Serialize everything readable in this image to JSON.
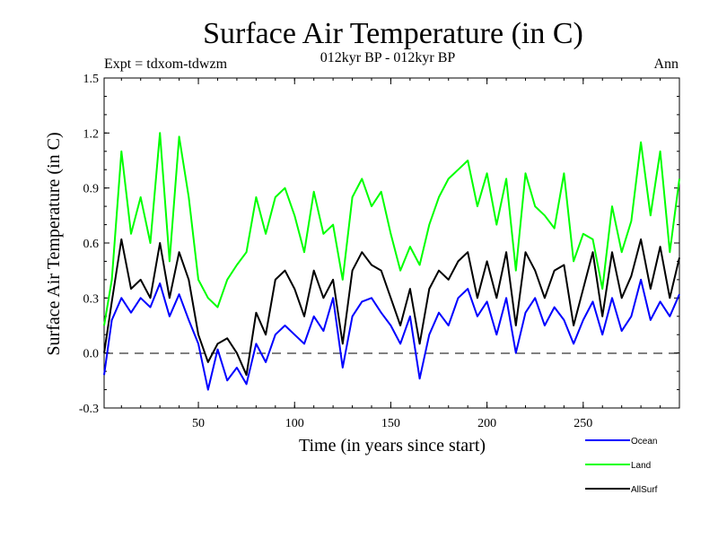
{
  "chart_data": {
    "type": "line",
    "title": "Surface Air Temperature (in C)",
    "subtitle": "012kyr BP - 012kyr BP",
    "experiment_label": "Expt = tdxom-tdwzm",
    "period_label": "Ann",
    "xlabel": "Time (in years since start)",
    "ylabel": "Surface Air Temperature (in C)",
    "xlim": [
      1,
      300
    ],
    "ylim": [
      -0.3,
      1.5
    ],
    "xticks": [
      "50",
      "100",
      "150",
      "200",
      "250"
    ],
    "yticks": [
      "-0.3",
      "0.0",
      "0.3",
      "0.6",
      "0.9",
      "1.2",
      "1.5"
    ],
    "zero_line": "dashed",
    "grid": false,
    "legend_position": "bottom-right",
    "x": [
      1,
      5,
      10,
      15,
      20,
      25,
      30,
      35,
      40,
      45,
      50,
      55,
      60,
      65,
      70,
      75,
      80,
      85,
      90,
      95,
      100,
      105,
      110,
      115,
      120,
      125,
      130,
      135,
      140,
      145,
      150,
      155,
      160,
      165,
      170,
      175,
      180,
      185,
      190,
      195,
      200,
      205,
      210,
      215,
      220,
      225,
      230,
      235,
      240,
      245,
      250,
      255,
      260,
      265,
      270,
      275,
      280,
      285,
      290,
      295,
      300
    ],
    "series": [
      {
        "name": "Ocean",
        "color": "#0000ff",
        "values": [
          -0.12,
          0.18,
          0.3,
          0.22,
          0.3,
          0.25,
          0.38,
          0.2,
          0.32,
          0.18,
          0.05,
          -0.2,
          0.02,
          -0.15,
          -0.08,
          -0.17,
          0.05,
          -0.05,
          0.1,
          0.15,
          0.1,
          0.05,
          0.2,
          0.12,
          0.3,
          -0.08,
          0.2,
          0.28,
          0.3,
          0.22,
          0.15,
          0.05,
          0.2,
          -0.14,
          0.1,
          0.22,
          0.15,
          0.3,
          0.35,
          0.2,
          0.28,
          0.1,
          0.3,
          0.0,
          0.22,
          0.3,
          0.15,
          0.25,
          0.18,
          0.05,
          0.18,
          0.28,
          0.1,
          0.3,
          0.12,
          0.2,
          0.4,
          0.18,
          0.28,
          0.2,
          0.32
        ]
      },
      {
        "name": "Land",
        "color": "#00ff00",
        "values": [
          0.15,
          0.4,
          1.1,
          0.65,
          0.85,
          0.6,
          1.2,
          0.5,
          1.18,
          0.85,
          0.4,
          0.3,
          0.25,
          0.4,
          0.48,
          0.55,
          0.85,
          0.65,
          0.85,
          0.9,
          0.75,
          0.55,
          0.88,
          0.65,
          0.7,
          0.4,
          0.85,
          0.95,
          0.8,
          0.88,
          0.65,
          0.45,
          0.58,
          0.48,
          0.7,
          0.85,
          0.95,
          1.0,
          1.05,
          0.8,
          0.98,
          0.7,
          0.95,
          0.45,
          0.98,
          0.8,
          0.75,
          0.68,
          0.98,
          0.5,
          0.65,
          0.62,
          0.35,
          0.8,
          0.55,
          0.72,
          1.15,
          0.75,
          1.1,
          0.55,
          0.95
        ]
      },
      {
        "name": "AllSurf",
        "color": "#000000",
        "values": [
          0.0,
          0.28,
          0.62,
          0.35,
          0.4,
          0.3,
          0.6,
          0.3,
          0.55,
          0.4,
          0.1,
          -0.05,
          0.05,
          0.08,
          0.0,
          -0.12,
          0.22,
          0.1,
          0.4,
          0.45,
          0.35,
          0.2,
          0.45,
          0.3,
          0.4,
          0.05,
          0.45,
          0.55,
          0.48,
          0.45,
          0.3,
          0.15,
          0.35,
          0.05,
          0.35,
          0.45,
          0.4,
          0.5,
          0.55,
          0.3,
          0.5,
          0.3,
          0.55,
          0.15,
          0.55,
          0.45,
          0.3,
          0.45,
          0.48,
          0.15,
          0.35,
          0.55,
          0.2,
          0.55,
          0.3,
          0.42,
          0.62,
          0.35,
          0.58,
          0.3,
          0.52
        ]
      }
    ]
  }
}
